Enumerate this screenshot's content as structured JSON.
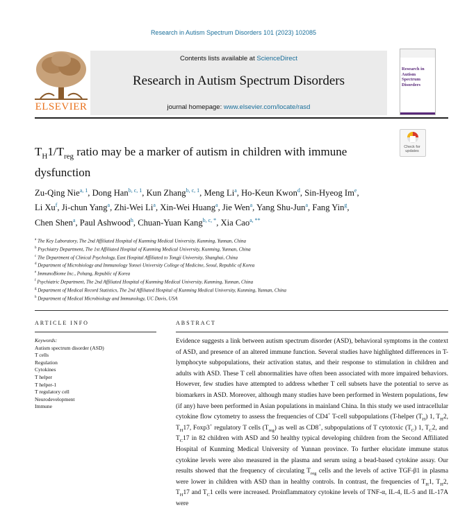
{
  "journal_ref": "Research in Autism Spectrum Disorders 101 (2023) 102085",
  "header": {
    "contents_prefix": "Contents lists available at ",
    "contents_link": "ScienceDirect",
    "journal_title": "Research in Autism Spectrum Disorders",
    "homepage_prefix": "journal homepage: ",
    "homepage_link": "www.elsevier.com/locate/rasd",
    "publisher": "ELSEVIER",
    "check_updates": "Check for updates"
  },
  "title": [
    "T",
    "H",
    "1/T",
    "reg",
    " ratio may be a marker of autism in children with immune dysfunction"
  ],
  "authors": [
    {
      "name": "Zu-Qing Nie",
      "sup": "a, 1",
      "sep": ","
    },
    {
      "name": "Dong Han",
      "sup": "b, c, 1",
      "sep": ","
    },
    {
      "name": "Kun Zhang",
      "sup": "b, c, 1",
      "sep": ","
    },
    {
      "name": "Meng Li",
      "sup": "a",
      "sep": ","
    },
    {
      "name": "Ho-Keun Kwon",
      "sup": "d",
      "sep": ","
    },
    {
      "name": "Sin-Hyeog Im",
      "sup": "e",
      "sep": ","
    },
    {
      "name": "Li Xu",
      "sup": "f",
      "sep": ","
    },
    {
      "name": "Ji-chun Yang",
      "sup": "a",
      "sep": ","
    },
    {
      "name": "Zhi-Wei Li",
      "sup": "a",
      "sep": ","
    },
    {
      "name": "Xin-Wei Huang",
      "sup": "a",
      "sep": ","
    },
    {
      "name": "Jie Wen",
      "sup": "a",
      "sep": ","
    },
    {
      "name": "Yang Shu-Jun",
      "sup": "a",
      "sep": ","
    },
    {
      "name": "Fang Yin",
      "sup": "g",
      "sep": ","
    },
    {
      "name": "Chen Shen",
      "sup": "a",
      "sep": ","
    },
    {
      "name": "Paul Ashwood",
      "sup": "h",
      "sep": ","
    },
    {
      "name": "Chuan-Yuan Kang",
      "sup": "b, c, *",
      "sep": ","
    },
    {
      "name": "Xia Cao",
      "sup": "a, **"
    }
  ],
  "affiliations": [
    {
      "letter": "a",
      "text": "The Key Laboratory, The 2nd Affiliated Hospital of Kunming Medical University, Kunming, Yunnan, China"
    },
    {
      "letter": "b",
      "text": "Psychiatry Department, The 1st Affiliated Hospital of Kunming Medical University, Kunming, Yunnan, China"
    },
    {
      "letter": "c",
      "text": "The Department of Clinical Psychology, East Hospital Affiliated to Tongji University, Shanghai, China"
    },
    {
      "letter": "d",
      "text": "Department of Microbiology and Immunology Yonsei University College of Medicine, Seoul, Republic of Korea"
    },
    {
      "letter": "e",
      "text": "ImmunoBiome Inc., Pohang, Republic of Korea"
    },
    {
      "letter": "f",
      "text": "Psychiatric Department, The 2nd Affiliated Hospital of Kunming Medical University, Kunming, Yunnan, China"
    },
    {
      "letter": "g",
      "text": "Department of Medical Record Statistics, The 2nd Affiliated Hospital of Kunming Medical University, Kunming, Yunnan, China"
    },
    {
      "letter": "h",
      "text": "Department of Medical Microbiology and Immunology, UC Davis, USA"
    }
  ],
  "article_info": {
    "heading": "ARTICLE INFO",
    "keywords_label": "Keywords:",
    "keywords": [
      "Autism spectrum disorder (ASD)",
      "T cells",
      "Regulation",
      "Cytokines",
      "T helper",
      "T helper-1",
      "T regulatory cell",
      "Neurodevelopment",
      "Immune"
    ]
  },
  "abstract_heading": "ABSTRACT",
  "abstract": [
    "Evidence suggests a link between autism spectrum disorder (ASD), behavioral symptoms in the context of ASD, and presence of an altered immune function. Several studies have highlighted differences in T-lymphocyte subpopulations, their activation status, and their response to stimulation in children and adults with ASD. These T cell abnormalities have often been associated with more impaired behaviors. However, few studies have attempted to address whether T cell subsets have the potential to serve as biomarkers in ASD. Moreover, although many studies have been performed in Western populations, few (if any) have been performed in Asian populations in mainland China. In this study we used intracellular cytokine flow cytometry to assess the frequencies of CD4",
    {
      "sup": "+"
    },
    " T-cell subpopulations (T-helper (T",
    {
      "sub": "H"
    },
    ") 1, T",
    {
      "sub": "H"
    },
    "2, T",
    {
      "sub": "H"
    },
    "17, Foxp3",
    {
      "sup": "+"
    },
    " regulatory T cells (T",
    {
      "sub": "reg"
    },
    ") as well as CD8",
    {
      "sup": "+"
    },
    ", subpopulations of T cytotoxic (T",
    {
      "sub": "C"
    },
    ") 1, T",
    {
      "sub": "C"
    },
    "2, and T",
    {
      "sub": "C"
    },
    "17 in 82 children with ASD and 50 healthy typical developing children from the Second Affiliated Hospital of Kunming Medical University of Yunnan province. To further elucidate immune status cytokine levels were also measured in the plasma and serum using a bead-based cytokine assay. Our results showed that the frequency of circulating T",
    {
      "sub": "reg"
    },
    " cells and the levels of active TGF-β1 in plasma were lower in children with ASD than in healthy controls. In contrast, the frequencies of T",
    {
      "sub": "H"
    },
    "1, T",
    {
      "sub": "H"
    },
    "2, T",
    {
      "sub": "H"
    },
    "17 and T",
    {
      "sub": "C"
    },
    "1 cells were increased. Proinflammatory cytokine levels of TNF-α, IL-4, IL-5 and IL-17A were"
  ]
}
